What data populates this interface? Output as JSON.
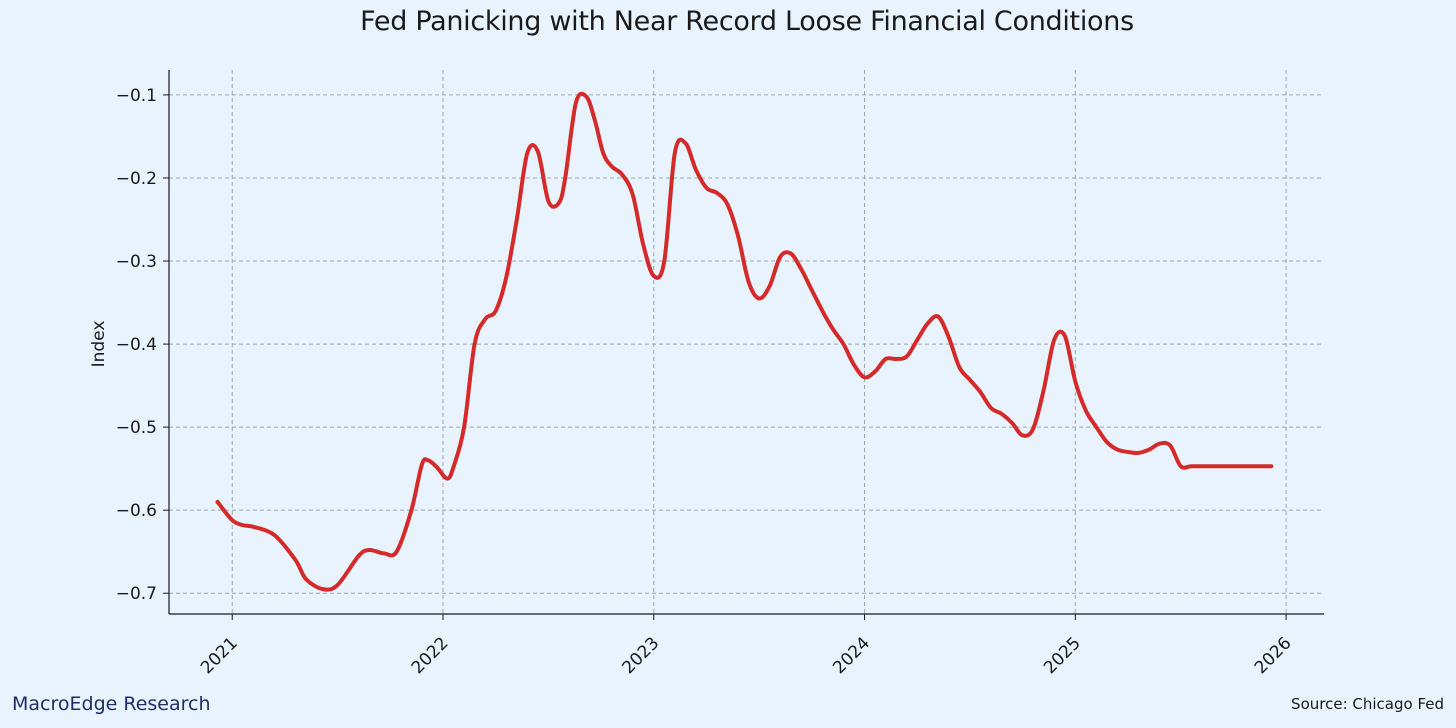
{
  "footer": {
    "brand": "MacroEdge Research",
    "source": "Source: Chicago Fed"
  },
  "colors": {
    "background": "#e8f3fe",
    "line": "#d42a2a",
    "grid": "#9aa8ad"
  },
  "chart_data": {
    "type": "line",
    "title": "Fed Panicking with Near Record Loose Financial Conditions",
    "xlabel": "",
    "ylabel": "Index",
    "xlim": [
      2020.7,
      2026.18
    ],
    "ylim": [
      -0.725,
      -0.07
    ],
    "x_ticks": [
      2021,
      2022,
      2023,
      2024,
      2025,
      2026
    ],
    "x_tick_labels": [
      "2021",
      "2022",
      "2023",
      "2024",
      "2025",
      "2026"
    ],
    "y_ticks": [
      -0.7,
      -0.6,
      -0.5,
      -0.4,
      -0.3,
      -0.2,
      -0.1
    ],
    "y_tick_labels": [
      "−0.7",
      "−0.6",
      "−0.5",
      "−0.4",
      "−0.3",
      "−0.2",
      "−0.1"
    ],
    "grid": true,
    "legend": "none",
    "series": [
      {
        "color": "#d42a2a",
        "x": [
          2020.93,
          2021.0,
          2021.05,
          2021.1,
          2021.2,
          2021.3,
          2021.35,
          2021.43,
          2021.5,
          2021.6,
          2021.65,
          2021.72,
          2021.78,
          2021.85,
          2021.9,
          2021.93,
          2021.97,
          2022.02,
          2022.05,
          2022.1,
          2022.15,
          2022.2,
          2022.25,
          2022.3,
          2022.35,
          2022.4,
          2022.45,
          2022.5,
          2022.55,
          2022.58,
          2022.63,
          2022.68,
          2022.72,
          2022.76,
          2022.8,
          2022.85,
          2022.9,
          2022.95,
          2023.0,
          2023.05,
          2023.1,
          2023.15,
          2023.2,
          2023.25,
          2023.3,
          2023.35,
          2023.4,
          2023.45,
          2023.5,
          2023.55,
          2023.6,
          2023.65,
          2023.7,
          2023.75,
          2023.8,
          2023.85,
          2023.9,
          2023.95,
          2024.0,
          2024.05,
          2024.1,
          2024.15,
          2024.2,
          2024.25,
          2024.3,
          2024.35,
          2024.4,
          2024.45,
          2024.5,
          2024.55,
          2024.6,
          2024.65,
          2024.7,
          2024.75,
          2024.8,
          2024.85,
          2024.9,
          2024.95,
          2025.0,
          2025.05,
          2025.1,
          2025.15,
          2025.2,
          2025.25,
          2025.3,
          2025.35,
          2025.4,
          2025.45,
          2025.5,
          2025.55,
          2025.6,
          2025.65,
          2025.7,
          2025.75,
          2025.8,
          2025.85,
          2025.9,
          2025.93
        ],
        "y": [
          -0.59,
          -0.612,
          -0.618,
          -0.62,
          -0.63,
          -0.66,
          -0.683,
          -0.695,
          -0.69,
          -0.655,
          -0.648,
          -0.652,
          -0.65,
          -0.6,
          -0.545,
          -0.54,
          -0.548,
          -0.562,
          -0.548,
          -0.5,
          -0.4,
          -0.37,
          -0.36,
          -0.32,
          -0.25,
          -0.17,
          -0.168,
          -0.228,
          -0.23,
          -0.2,
          -0.11,
          -0.102,
          -0.13,
          -0.17,
          -0.186,
          -0.196,
          -0.22,
          -0.28,
          -0.318,
          -0.3,
          -0.17,
          -0.158,
          -0.19,
          -0.212,
          -0.218,
          -0.232,
          -0.27,
          -0.325,
          -0.345,
          -0.33,
          -0.295,
          -0.291,
          -0.31,
          -0.335,
          -0.36,
          -0.382,
          -0.4,
          -0.425,
          -0.44,
          -0.433,
          -0.418,
          -0.418,
          -0.415,
          -0.395,
          -0.375,
          -0.367,
          -0.392,
          -0.428,
          -0.443,
          -0.458,
          -0.477,
          -0.484,
          -0.495,
          -0.51,
          -0.502,
          -0.455,
          -0.395,
          -0.39,
          -0.445,
          -0.48,
          -0.5,
          -0.518,
          -0.527,
          -0.53,
          -0.531,
          -0.527,
          -0.52,
          -0.522,
          -0.547,
          -0.547,
          -0.547,
          -0.547,
          -0.547,
          -0.547,
          -0.547,
          -0.547,
          -0.547,
          -0.547
        ]
      }
    ]
  }
}
